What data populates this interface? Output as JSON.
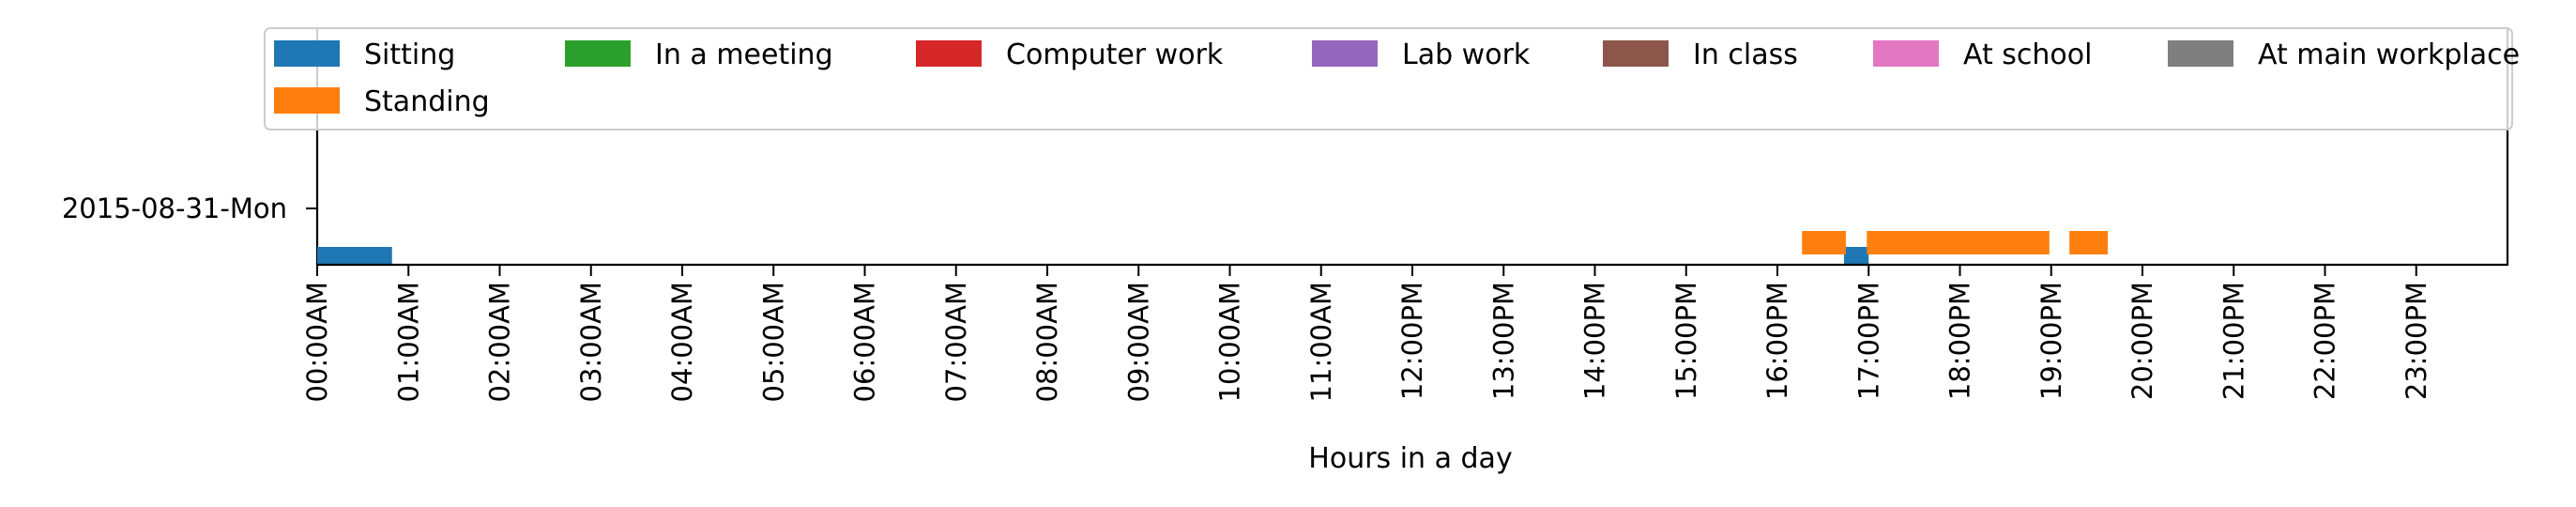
{
  "chart_data": {
    "type": "bar",
    "orientation": "horizontal-timeline",
    "title": "",
    "xlabel": "Hours in a day",
    "ylabel": "",
    "xlim": [
      0,
      24
    ],
    "x_ticks": [
      "00:00AM",
      "01:00AM",
      "02:00AM",
      "03:00AM",
      "04:00AM",
      "05:00AM",
      "06:00AM",
      "07:00AM",
      "08:00AM",
      "09:00AM",
      "10:00AM",
      "11:00AM",
      "12:00PM",
      "13:00PM",
      "14:00PM",
      "15:00PM",
      "16:00PM",
      "17:00PM",
      "18:00PM",
      "19:00PM",
      "20:00PM",
      "21:00PM",
      "22:00PM",
      "23:00PM"
    ],
    "categories": [
      "2015-08-31-Mon"
    ],
    "grid": false,
    "legend": {
      "placement": "top",
      "entries": [
        {
          "name": "Sitting",
          "color": "#1f77b4"
        },
        {
          "name": "In a meeting",
          "color": "#2ca02c"
        },
        {
          "name": "Computer work",
          "color": "#d62728"
        },
        {
          "name": "Lab work",
          "color": "#9467bd"
        },
        {
          "name": "In class",
          "color": "#8c564b"
        },
        {
          "name": "At school",
          "color": "#e377c2"
        },
        {
          "name": "At main workplace",
          "color": "#7f7f7f"
        },
        {
          "name": "Standing",
          "color": "#ff7f0e"
        }
      ]
    },
    "series": [
      {
        "name": "Sitting",
        "color": "#1f77b4",
        "intervals": [
          {
            "day": "2015-08-31-Mon",
            "start": 0.0,
            "end": 0.82
          },
          {
            "day": "2015-08-31-Mon",
            "start": 16.73,
            "end": 17.0
          }
        ]
      },
      {
        "name": "Standing",
        "color": "#ff7f0e",
        "intervals": [
          {
            "day": "2015-08-31-Mon",
            "start": 16.27,
            "end": 16.75
          },
          {
            "day": "2015-08-31-Mon",
            "start": 16.98,
            "end": 18.98
          },
          {
            "day": "2015-08-31-Mon",
            "start": 19.2,
            "end": 19.62
          }
        ]
      }
    ]
  }
}
